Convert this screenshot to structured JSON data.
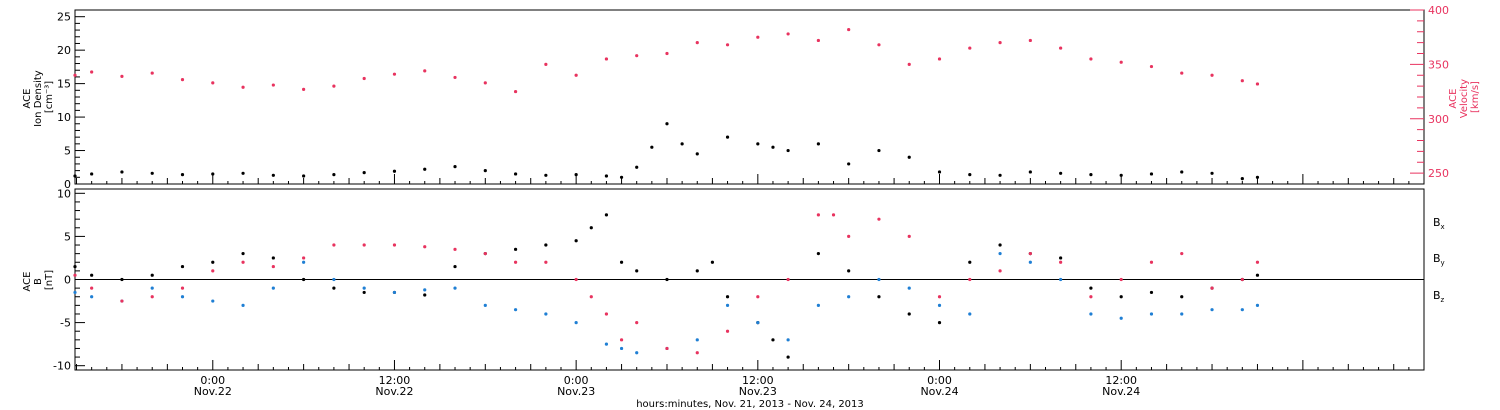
{
  "chart_data": [
    {
      "id": "top",
      "type": "scatter",
      "ylabel_lines": [
        "ACE",
        "Ion Density",
        "[cm⁻³]"
      ],
      "ylabel2_lines": [
        "ACE",
        "Velocity",
        "[km/s]"
      ],
      "ylim": [
        0,
        26
      ],
      "yticks": [
        0,
        5,
        10,
        15,
        20,
        25
      ],
      "ylim2": [
        240,
        400
      ],
      "yticks2": [
        250,
        300,
        350,
        400
      ],
      "series": [
        {
          "color": "#000000",
          "axis": "left",
          "x": [
            -9.1,
            -8,
            -6,
            -4,
            -2,
            0,
            2,
            4,
            6,
            8,
            10,
            12,
            14,
            16,
            18,
            20,
            22,
            24,
            26,
            27,
            28,
            29,
            30,
            31,
            32,
            34,
            36,
            37,
            38,
            40,
            42,
            44,
            46,
            48,
            50,
            52,
            54,
            56,
            58,
            60,
            62,
            64,
            66,
            68,
            69
          ],
          "y": [
            1.2,
            1.5,
            1.8,
            1.6,
            1.4,
            1.5,
            1.6,
            1.3,
            1.2,
            1.4,
            1.7,
            1.9,
            2.2,
            2.6,
            2.0,
            1.5,
            1.3,
            1.4,
            1.2,
            1.0,
            2.5,
            5.5,
            9,
            6,
            4.5,
            7,
            6,
            5.5,
            5,
            6,
            3,
            5,
            4,
            1.8,
            1.4,
            1.3,
            1.8,
            1.6,
            1.4,
            1.3,
            1.5,
            1.8,
            1.6,
            0.8,
            1.0
          ]
        },
        {
          "color": "#e8335f",
          "axis": "right",
          "x": [
            -9.1,
            -8,
            -6,
            -4,
            -2,
            0,
            2,
            4,
            6,
            8,
            10,
            12,
            14,
            16,
            18,
            20,
            22,
            24,
            26,
            28,
            30,
            32,
            34,
            36,
            38,
            40,
            42,
            44,
            46,
            48,
            50,
            52,
            54,
            56,
            58,
            60,
            62,
            64,
            66,
            68,
            69
          ],
          "y": [
            340,
            343,
            339,
            342,
            336,
            333,
            329,
            331,
            327,
            330,
            337,
            341,
            344,
            338,
            333,
            325,
            350,
            340,
            355,
            358,
            360,
            370,
            368,
            375,
            378,
            372,
            382,
            368,
            350,
            355,
            365,
            370,
            372,
            365,
            355,
            352,
            348,
            342,
            340,
            335,
            332
          ]
        }
      ]
    },
    {
      "id": "bottom",
      "type": "scatter",
      "ylabel_lines": [
        "ACE",
        "B",
        "[nT]"
      ],
      "ylim": [
        -10.5,
        10.5
      ],
      "yticks": [
        -10,
        -5,
        0,
        5,
        10
      ],
      "xlabel": "hours:minutes, Nov. 21, 2013 - Nov. 24, 2013",
      "xlim": [
        -9.1,
        80
      ],
      "xticks": [
        {
          "x": 0,
          "l1": "0:00",
          "l2": "Nov.22"
        },
        {
          "x": 12,
          "l1": "12:00",
          "l2": "Nov.22"
        },
        {
          "x": 24,
          "l1": "0:00",
          "l2": "Nov.23"
        },
        {
          "x": 36,
          "l1": "12:00",
          "l2": "Nov.23"
        },
        {
          "x": 48,
          "l1": "0:00",
          "l2": "Nov.24"
        },
        {
          "x": 60,
          "l1": "12:00",
          "l2": "Nov.24"
        }
      ],
      "series": [
        {
          "name": "Bx",
          "legend_main": "B",
          "legend_sub": "x",
          "color": "#000000",
          "x": [
            -9.1,
            -8,
            -6,
            -4,
            -2,
            0,
            2,
            4,
            6,
            8,
            10,
            12,
            14,
            16,
            18,
            20,
            22,
            24,
            25,
            26,
            27,
            28,
            30,
            32,
            33,
            34,
            36,
            37,
            38,
            40,
            42,
            44,
            46,
            48,
            50,
            52,
            54,
            56,
            58,
            60,
            62,
            64,
            66,
            68,
            69
          ],
          "y": [
            1.5,
            0.5,
            0,
            0.5,
            1.5,
            2,
            3,
            2.5,
            0,
            -1,
            -1.5,
            -1.5,
            -1.8,
            1.5,
            3,
            3.5,
            4,
            4.5,
            6,
            7.5,
            2,
            1,
            0,
            1,
            2,
            -2,
            -5,
            -7,
            -9,
            3,
            1,
            -2,
            -4,
            -5,
            2,
            4,
            3,
            2.5,
            -1,
            -2,
            -1.5,
            -2,
            -1,
            0,
            0.5
          ]
        },
        {
          "name": "By",
          "legend_main": "B",
          "legend_sub": "y",
          "color": "#1f7fd4",
          "x": [
            -9.1,
            -8,
            -6,
            -4,
            -2,
            0,
            2,
            4,
            6,
            8,
            10,
            12,
            14,
            16,
            18,
            20,
            22,
            24,
            26,
            27,
            28,
            30,
            32,
            34,
            36,
            38,
            40,
            42,
            44,
            46,
            48,
            50,
            52,
            54,
            56,
            58,
            60,
            62,
            64,
            66,
            68,
            69
          ],
          "y": [
            -1.5,
            -2,
            -2.5,
            -1,
            -2,
            -2.5,
            -3,
            -1,
            2,
            0,
            -1,
            -1.5,
            -1.2,
            -1,
            -3,
            -3.5,
            -4,
            -5,
            -7.5,
            -8,
            -8.5,
            -8,
            -7,
            -3,
            -5,
            -7,
            -3,
            -2,
            0,
            -1,
            -3,
            -4,
            3,
            2,
            0,
            -4,
            -4.5,
            -4,
            -4,
            -3.5,
            -3.5,
            -3
          ]
        },
        {
          "name": "Bz",
          "legend_main": "B",
          "legend_sub": "z",
          "color": "#e8335f",
          "x": [
            -9.1,
            -8,
            -6,
            -4,
            -2,
            0,
            2,
            4,
            6,
            8,
            10,
            12,
            14,
            16,
            18,
            20,
            22,
            24,
            25,
            26,
            27,
            28,
            30,
            32,
            34,
            36,
            38,
            40,
            41,
            42,
            44,
            46,
            48,
            50,
            52,
            54,
            56,
            58,
            60,
            62,
            64,
            66,
            68,
            69
          ],
          "y": [
            0.5,
            -1,
            -2.5,
            -2,
            -1,
            1,
            2,
            1.5,
            2.5,
            4,
            4,
            4,
            3.8,
            3.5,
            3,
            2,
            2,
            0,
            -2,
            -4,
            -7,
            -5,
            -8,
            -8.5,
            -6,
            -2,
            0,
            7.5,
            7.5,
            5,
            7,
            5,
            -2,
            0,
            1,
            3,
            2,
            -2,
            0,
            2,
            3,
            -1,
            0,
            2
          ]
        }
      ]
    }
  ]
}
